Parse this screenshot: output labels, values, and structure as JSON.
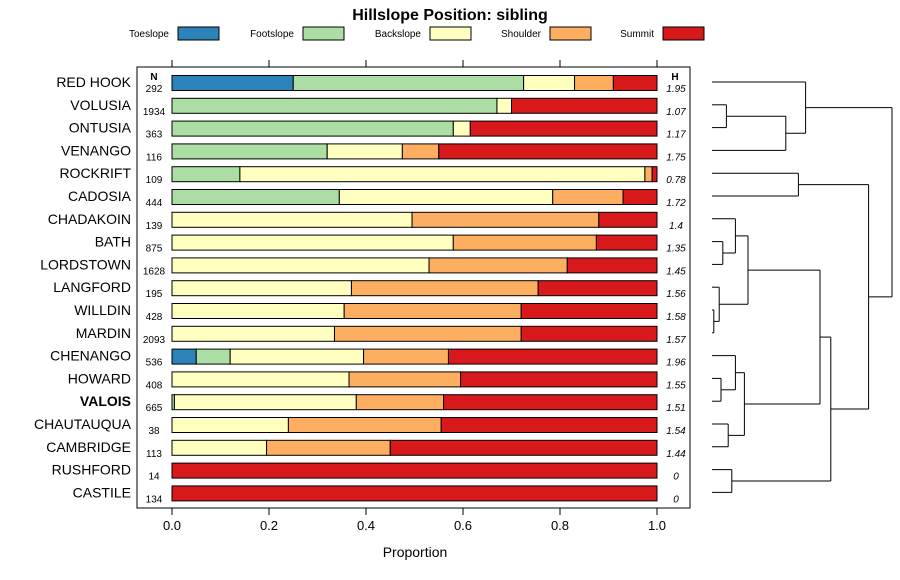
{
  "chart_data": {
    "type": "bar",
    "orientation": "horizontal",
    "stacked": true,
    "title": "Hillslope Position: sibling",
    "xlabel": "Proportion",
    "ylabel": "",
    "xlim": [
      0,
      1
    ],
    "xticks": [
      "0.0",
      "0.2",
      "0.4",
      "0.6",
      "0.8",
      "1.0"
    ],
    "n_header": "N",
    "h_header": "H",
    "highlight": "VALOIS",
    "legend": [
      {
        "name": "Toeslope",
        "color": "#2b83ba"
      },
      {
        "name": "Footslope",
        "color": "#abdda4"
      },
      {
        "name": "Backslope",
        "color": "#ffffbf"
      },
      {
        "name": "Shoulder",
        "color": "#fdae61"
      },
      {
        "name": "Summit",
        "color": "#d7191c"
      }
    ],
    "rows": [
      {
        "name": "RED HOOK",
        "n": "292",
        "h": "1.95",
        "values": [
          0.25,
          0.475,
          0.105,
          0.08,
          0.09
        ]
      },
      {
        "name": "VOLUSIA",
        "n": "1934",
        "h": "1.07",
        "values": [
          0,
          0.67,
          0.03,
          0,
          0.3
        ]
      },
      {
        "name": "ONTUSIA",
        "n": "363",
        "h": "1.17",
        "values": [
          0,
          0.58,
          0.035,
          0,
          0.385
        ]
      },
      {
        "name": "VENANGO",
        "n": "116",
        "h": "1.75",
        "values": [
          0,
          0.32,
          0.155,
          0.075,
          0.45
        ]
      },
      {
        "name": "ROCKRIFT",
        "n": "109",
        "h": "0.78",
        "values": [
          0,
          0.14,
          0.835,
          0.015,
          0.01
        ]
      },
      {
        "name": "CADOSIA",
        "n": "444",
        "h": "1.72",
        "values": [
          0,
          0.345,
          0.44,
          0.145,
          0.07
        ]
      },
      {
        "name": "CHADAKOIN",
        "n": "139",
        "h": "1.4",
        "values": [
          0,
          0,
          0.495,
          0.385,
          0.12
        ]
      },
      {
        "name": "BATH",
        "n": "875",
        "h": "1.35",
        "values": [
          0,
          0,
          0.58,
          0.295,
          0.125
        ]
      },
      {
        "name": "LORDSTOWN",
        "n": "1628",
        "h": "1.45",
        "values": [
          0,
          0,
          0.53,
          0.285,
          0.185
        ]
      },
      {
        "name": "LANGFORD",
        "n": "195",
        "h": "1.56",
        "values": [
          0,
          0,
          0.37,
          0.385,
          0.245
        ]
      },
      {
        "name": "WILLDIN",
        "n": "428",
        "h": "1.58",
        "values": [
          0,
          0,
          0.355,
          0.365,
          0.28
        ]
      },
      {
        "name": "MARDIN",
        "n": "2093",
        "h": "1.57",
        "values": [
          0,
          0,
          0.335,
          0.385,
          0.28
        ]
      },
      {
        "name": "CHENANGO",
        "n": "536",
        "h": "1.96",
        "values": [
          0.05,
          0.07,
          0.275,
          0.175,
          0.43
        ]
      },
      {
        "name": "HOWARD",
        "n": "408",
        "h": "1.55",
        "values": [
          0,
          0,
          0.365,
          0.23,
          0.405
        ]
      },
      {
        "name": "VALOIS",
        "n": "665",
        "h": "1.51",
        "values": [
          0,
          0.005,
          0.375,
          0.18,
          0.44
        ]
      },
      {
        "name": "CHAUTAUQUA",
        "n": "38",
        "h": "1.54",
        "values": [
          0,
          0,
          0.24,
          0.315,
          0.445
        ]
      },
      {
        "name": "CAMBRIDGE",
        "n": "113",
        "h": "1.44",
        "values": [
          0,
          0,
          0.195,
          0.255,
          0.55
        ]
      },
      {
        "name": "RUSHFORD",
        "n": "14",
        "h": "0",
        "values": [
          0,
          0,
          0,
          0,
          1
        ]
      },
      {
        "name": "CASTILE",
        "n": "134",
        "h": "0",
        "values": [
          0,
          0,
          0,
          0,
          1
        ]
      }
    ],
    "dendrogram": {
      "description": "hierarchical clustering of series shown to the right of the chart",
      "merges": [
        {
          "a": "VOLUSIA",
          "b": "ONTUSIA",
          "height": 0.08
        },
        {
          "a": [
            "VOLUSIA",
            "ONTUSIA"
          ],
          "b": "VENANGO",
          "height": 0.41
        },
        {
          "a": "RED HOOK",
          "b": [
            "VOLUSIA",
            "ONTUSIA",
            "VENANGO"
          ],
          "height": 0.52
        },
        {
          "a": "ROCKRIFT",
          "b": "CADOSIA",
          "height": 0.48
        },
        {
          "a": "BATH",
          "b": "LORDSTOWN",
          "height": 0.06
        },
        {
          "a": "CHADAKOIN",
          "b": [
            "BATH",
            "LORDSTOWN"
          ],
          "height": 0.13
        },
        {
          "a": "WILLDIN",
          "b": "MARDIN",
          "height": 0.01
        },
        {
          "a": "LANGFORD",
          "b": [
            "WILLDIN",
            "MARDIN"
          ],
          "height": 0.04
        },
        {
          "a": [
            "CHADAKOIN",
            "BATH",
            "LORDSTOWN"
          ],
          "b": [
            "LANGFORD",
            "WILLDIN",
            "MARDIN"
          ],
          "height": 0.2
        },
        {
          "a": "HOWARD",
          "b": "VALOIS",
          "height": 0.05
        },
        {
          "a": "CHENANGO",
          "b": [
            "HOWARD",
            "VALOIS"
          ],
          "height": 0.13
        },
        {
          "a": "CHAUTAUQUA",
          "b": "CAMBRIDGE",
          "height": 0.09
        },
        {
          "a": [
            "CHENANGO",
            "HOWARD",
            "VALOIS"
          ],
          "b": [
            "CHAUTAUQUA",
            "CAMBRIDGE"
          ],
          "height": 0.18
        },
        {
          "a": [
            "CHADAKOIN",
            "BATH",
            "LORDSTOWN",
            "LANGFORD",
            "WILLDIN",
            "MARDIN"
          ],
          "b": [
            "CHENANGO",
            "HOWARD",
            "VALOIS",
            "CHAUTAUQUA",
            "CAMBRIDGE"
          ],
          "height": 0.6
        },
        {
          "a": "RUSHFORD",
          "b": "CASTILE",
          "height": 0.11
        },
        {
          "a": [
            "CHADAKOIN",
            "BATH",
            "LORDSTOWN",
            "LANGFORD",
            "WILLDIN",
            "MARDIN",
            "CHENANGO",
            "HOWARD",
            "VALOIS",
            "CHAUTAUQUA",
            "CAMBRIDGE"
          ],
          "b": [
            "RUSHFORD",
            "CASTILE"
          ],
          "height": 0.66
        },
        {
          "a": [
            "ROCKRIFT",
            "CADOSIA"
          ],
          "b": [
            "CHADAKOIN",
            "BATH",
            "LORDSTOWN",
            "LANGFORD",
            "WILLDIN",
            "MARDIN",
            "CHENANGO",
            "HOWARD",
            "VALOIS",
            "CHAUTAUQUA",
            "CAMBRIDGE",
            "RUSHFORD",
            "CASTILE"
          ],
          "height": 0.87
        },
        {
          "a": [
            "RED HOOK",
            "VOLUSIA",
            "ONTUSIA",
            "VENANGO"
          ],
          "b": [
            "ROCKRIFT",
            "CADOSIA",
            "CHADAKOIN",
            "BATH",
            "LORDSTOWN",
            "LANGFORD",
            "WILLDIN",
            "MARDIN",
            "CHENANGO",
            "HOWARD",
            "VALOIS",
            "CHAUTAUQUA",
            "CAMBRIDGE",
            "RUSHFORD",
            "CASTILE"
          ],
          "height": 1.0
        }
      ]
    }
  }
}
